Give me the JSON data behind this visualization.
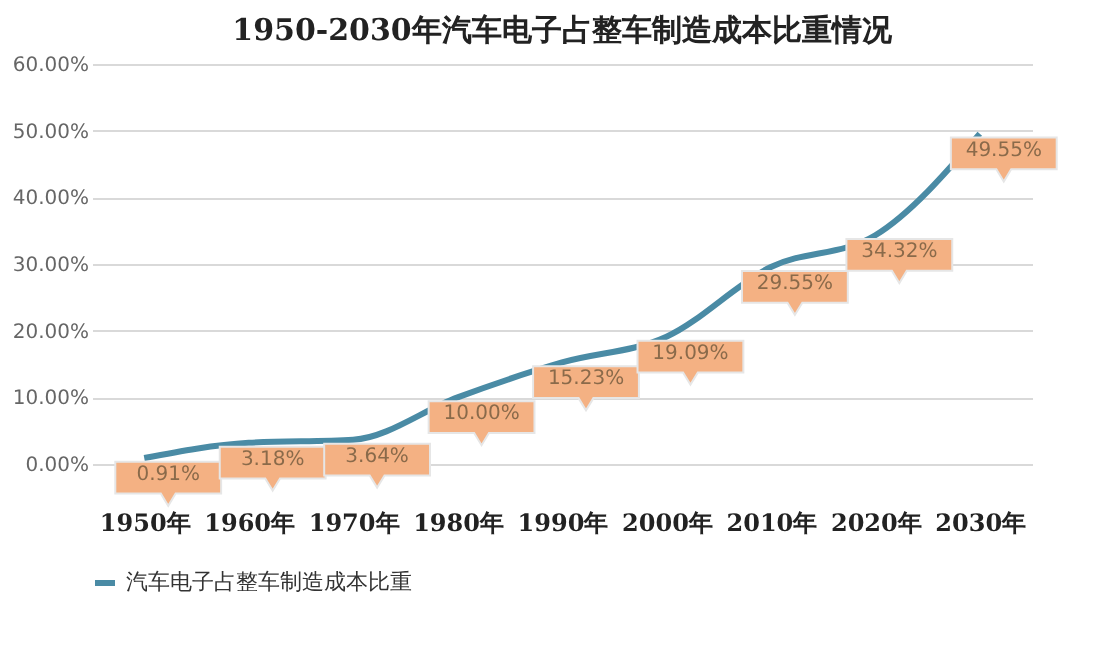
{
  "chart_data": {
    "type": "line",
    "title": "1950-2030年汽车电子占整车制造成本比重情况",
    "categories": [
      "1950年",
      "1960年",
      "1970年",
      "1980年",
      "1990年",
      "2000年",
      "2010年",
      "2020年",
      "2030年"
    ],
    "series": [
      {
        "name": "汽车电子占整车制造成本比重",
        "color": "#4a8ba5",
        "values": [
          0.91,
          3.18,
          3.64,
          10.0,
          15.23,
          19.09,
          29.55,
          34.32,
          49.55
        ],
        "value_labels": [
          "0.91%",
          "3.18%",
          "3.64%",
          "10.00%",
          "15.23%",
          "19.09%",
          "29.55%",
          "34.32%",
          "49.55%"
        ]
      }
    ],
    "ylim": [
      0,
      60
    ],
    "yticks": [
      {
        "value": 0,
        "label": "0.00%"
      },
      {
        "value": 10,
        "label": "10.00%"
      },
      {
        "value": 20,
        "label": "20.00%"
      },
      {
        "value": 30,
        "label": "30.00%"
      },
      {
        "value": 40,
        "label": "40.00%"
      },
      {
        "value": 50,
        "label": "50.00%"
      },
      {
        "value": 60,
        "label": "60.00%"
      }
    ],
    "grid": "y",
    "legend": "bottom",
    "marker": "none",
    "line_style": "solid"
  }
}
